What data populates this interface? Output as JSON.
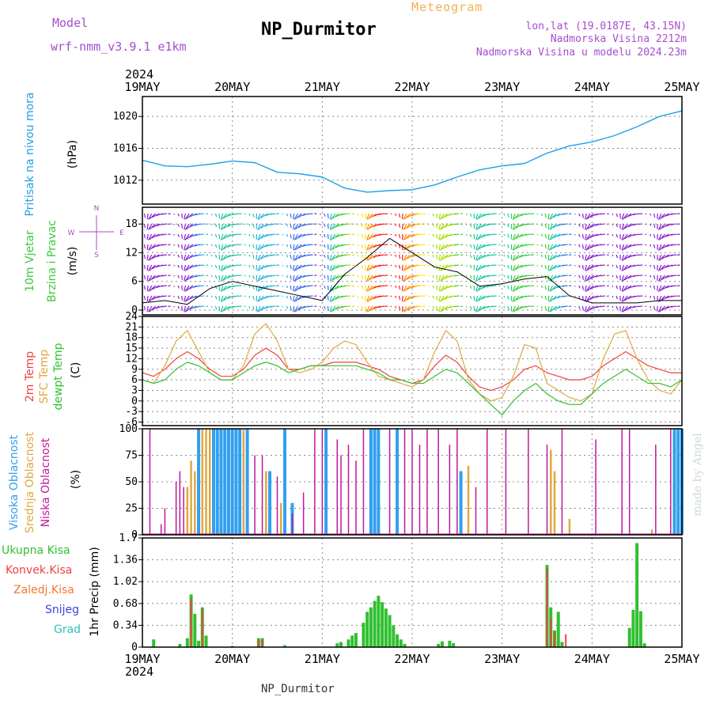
{
  "header": {
    "model_label": "Model",
    "model_name": "wrf-nmm_v3.9.1 e1km",
    "meteogram_label": "Meteogram",
    "station": "NP_Durmitor",
    "lonlat": "lon,lat (19.0187E, 43.15N)",
    "elevation": "Nadmorska Visina 2212m",
    "model_elevation": "Nadmorska Visina u modelu 2024.23m"
  },
  "footer": {
    "station": "NP_Durmitor",
    "credit": "made by Angel"
  },
  "colors": {
    "pressure": "#1fa0e6",
    "wind_label": "#3cc83c",
    "temp2m": "#f04040",
    "sfc": "#e0a840",
    "dewpt": "#30c030",
    "high_cloud": "#30a0f0",
    "mid_cloud": "#e0a840",
    "low_cloud": "#c0189c",
    "rain_total": "#30c030",
    "rain_conv": "#f04040",
    "rain_frozen": "#f07830",
    "snow": "#4040e0",
    "hail": "#30c0c0",
    "wind_axis": "#a64dcf"
  },
  "chart_data": [
    {
      "type": "line",
      "ylabel": [
        "Pritisak na nivou mora",
        "(hPa)"
      ],
      "ylim": [
        1009,
        1022.5
      ],
      "yticks": [
        "1012",
        "1016",
        "1020"
      ],
      "grid": true,
      "x_year_top": "2024",
      "x_year_bottom": "2024",
      "xticks": [
        "19MAY",
        "20MAY",
        "21MAY",
        "22MAY",
        "23MAY",
        "24MAY",
        "25MAY"
      ],
      "series": [
        {
          "x_hours": [
            0,
            6,
            12,
            18,
            24,
            30,
            36,
            42,
            48,
            54,
            60,
            66,
            72,
            78,
            84,
            90,
            96,
            102,
            108,
            114,
            120,
            126,
            132,
            138,
            144
          ],
          "values": [
            1014.5,
            1013.8,
            1013.7,
            1014.0,
            1014.4,
            1014.2,
            1013.0,
            1012.8,
            1012.4,
            1011.0,
            1010.5,
            1010.7,
            1010.8,
            1011.4,
            1012.4,
            1013.3,
            1013.8,
            1014.1,
            1015.4,
            1016.3,
            1016.8,
            1017.6,
            1018.7,
            1020.0,
            1020.7
          ]
        }
      ]
    },
    {
      "type": "line",
      "ylabel": [
        "10m Vjetar",
        "Brzina i Pravac",
        "(m/s)"
      ],
      "ylim": [
        -1,
        21.5
      ],
      "yticks": [
        "0",
        "6",
        "12",
        "18"
      ],
      "compass": [
        "N",
        "W",
        "E",
        "S"
      ],
      "series": [
        {
          "x_hours": [
            0,
            6,
            12,
            18,
            24,
            30,
            36,
            42,
            48,
            54,
            60,
            66,
            72,
            78,
            84,
            90,
            96,
            102,
            108,
            114,
            120,
            126,
            132,
            138,
            144
          ],
          "values": [
            1.5,
            2.0,
            1.2,
            4.5,
            6.0,
            5.0,
            4.0,
            3.0,
            2.0,
            7.5,
            11,
            15,
            12,
            9,
            8,
            5,
            5.5,
            6.5,
            7,
            3,
            1.5,
            1.5,
            1.5,
            2.0,
            2.0
          ]
        }
      ]
    },
    {
      "type": "line",
      "ylabel": [
        "2m Temp",
        "SFC Temp",
        "dewpt Temp",
        "(C)"
      ],
      "ylim": [
        -7,
        24
      ],
      "yticks": [
        "-6",
        "-3",
        "0",
        "3",
        "6",
        "9",
        "12",
        "15",
        "18",
        "21",
        "24"
      ],
      "series": [
        {
          "name": "2m Temp",
          "x_hours": [
            0,
            3,
            6,
            9,
            12,
            15,
            18,
            21,
            24,
            27,
            30,
            33,
            36,
            39,
            42,
            45,
            48,
            51,
            54,
            57,
            60,
            63,
            66,
            69,
            72,
            75,
            78,
            81,
            84,
            87,
            90,
            93,
            96,
            99,
            102,
            105,
            108,
            111,
            114,
            117,
            120,
            123,
            126,
            129,
            132,
            135,
            138,
            141,
            144
          ],
          "values": [
            8,
            7,
            9,
            12,
            14,
            12,
            9,
            7,
            7,
            9,
            13,
            15,
            13,
            9,
            9,
            10,
            10,
            11,
            11,
            11,
            10,
            9,
            7,
            6,
            5,
            6,
            10,
            13,
            11,
            7,
            4,
            3,
            4,
            6,
            9,
            10,
            8,
            7,
            6,
            6,
            7,
            10,
            12,
            14,
            12,
            10,
            9,
            8,
            8
          ]
        },
        {
          "name": "SFC Temp",
          "x_hours": [
            0,
            3,
            6,
            9,
            12,
            15,
            18,
            21,
            24,
            27,
            30,
            33,
            36,
            39,
            42,
            45,
            48,
            51,
            54,
            57,
            60,
            63,
            66,
            69,
            72,
            75,
            78,
            81,
            84,
            87,
            90,
            93,
            96,
            99,
            102,
            105,
            108,
            111,
            114,
            117,
            120,
            123,
            126,
            129,
            132,
            135,
            138,
            141,
            144
          ],
          "values": [
            6,
            5,
            10,
            17,
            20,
            14,
            8,
            6,
            6,
            10,
            19,
            22,
            17,
            9,
            8,
            9,
            11,
            15,
            17,
            16,
            11,
            7,
            6,
            5,
            4,
            6,
            14,
            20,
            17,
            6,
            2,
            0,
            1,
            7,
            16,
            15,
            5,
            3,
            1,
            0,
            2,
            12,
            19,
            20,
            12,
            6,
            3,
            2,
            6
          ]
        },
        {
          "name": "dewpt Temp",
          "x_hours": [
            0,
            3,
            6,
            9,
            12,
            15,
            18,
            21,
            24,
            27,
            30,
            33,
            36,
            39,
            42,
            45,
            48,
            51,
            54,
            57,
            60,
            63,
            66,
            69,
            72,
            75,
            78,
            81,
            84,
            87,
            90,
            93,
            96,
            99,
            102,
            105,
            108,
            111,
            114,
            117,
            120,
            123,
            126,
            129,
            132,
            135,
            138,
            141,
            144
          ],
          "values": [
            6,
            5,
            6,
            9,
            11,
            10,
            8,
            6,
            6,
            8,
            10,
            11,
            10,
            8,
            9,
            10,
            10,
            10,
            10,
            10,
            9,
            8,
            6,
            6,
            5,
            5,
            7,
            9,
            8,
            5,
            2,
            -1,
            -4,
            0,
            3,
            5,
            2,
            0,
            -1,
            -1,
            2,
            5,
            7,
            9,
            7,
            5,
            5,
            4,
            6
          ]
        }
      ]
    },
    {
      "type": "bar",
      "ylabel": [
        "Visoka Oblacnost",
        "Srednja Oblacnost",
        "Niska Oblacnost",
        "(%)"
      ],
      "ylim": [
        0,
        100
      ],
      "yticks": [
        "0",
        "25",
        "50",
        "75",
        "100"
      ],
      "series": [
        {
          "name": "Visoka Oblacnost",
          "bars": [
            [
              15,
              100
            ],
            [
              19,
              100
            ],
            [
              20,
              100
            ],
            [
              21,
              100
            ],
            [
              22,
              100
            ],
            [
              23,
              100
            ],
            [
              24,
              100
            ],
            [
              25,
              100
            ],
            [
              26,
              100
            ],
            [
              28,
              100
            ],
            [
              34,
              60
            ],
            [
              38,
              100
            ],
            [
              40,
              30
            ],
            [
              49,
              100
            ],
            [
              61,
              100
            ],
            [
              62,
              100
            ],
            [
              63,
              100
            ],
            [
              68,
              100
            ],
            [
              85,
              60
            ],
            [
              142,
              100
            ],
            [
              143,
              100
            ],
            [
              144,
              100
            ]
          ]
        },
        {
          "name": "Srednja Oblacnost",
          "bars": [
            [
              12,
              45
            ],
            [
              13,
              70
            ],
            [
              14,
              60
            ],
            [
              16,
              100
            ],
            [
              17,
              100
            ],
            [
              18,
              100
            ],
            [
              27,
              100
            ],
            [
              33,
              60
            ],
            [
              37,
              30
            ],
            [
              87,
              65
            ],
            [
              109,
              80
            ],
            [
              110,
              60
            ],
            [
              114,
              15
            ],
            [
              136,
              5
            ]
          ]
        },
        {
          "name": "Niska Oblacnost",
          "bars": [
            [
              2,
              100
            ],
            [
              5,
              10
            ],
            [
              6,
              25
            ],
            [
              9,
              50
            ],
            [
              10,
              60
            ],
            [
              11,
              45
            ],
            [
              30,
              75
            ],
            [
              32,
              75
            ],
            [
              36,
              55
            ],
            [
              40,
              20
            ],
            [
              43,
              40
            ],
            [
              46,
              100
            ],
            [
              48,
              100
            ],
            [
              52,
              90
            ],
            [
              53,
              75
            ],
            [
              55,
              85
            ],
            [
              57,
              70
            ],
            [
              59,
              100
            ],
            [
              66,
              100
            ],
            [
              70,
              100
            ],
            [
              72,
              100
            ],
            [
              74,
              85
            ],
            [
              76,
              100
            ],
            [
              79,
              100
            ],
            [
              82,
              85
            ],
            [
              84,
              100
            ],
            [
              89,
              45
            ],
            [
              92,
              100
            ],
            [
              97,
              100
            ],
            [
              103,
              100
            ],
            [
              108,
              85
            ],
            [
              112,
              100
            ],
            [
              121,
              90
            ],
            [
              128,
              100
            ],
            [
              130,
              100
            ],
            [
              137,
              85
            ],
            [
              141,
              100
            ]
          ]
        }
      ]
    },
    {
      "type": "bar",
      "ylabel": [
        "Ukupna Kisa",
        "Konvek.Kisa",
        "Zaledj.Kisa",
        "Snijeg",
        "Grad",
        "1hr Precip (mm)"
      ],
      "ylim": [
        0,
        1.7
      ],
      "yticks": [
        "0",
        "0.34",
        "0.68",
        "1.02",
        "1.36",
        "1.7"
      ],
      "series": [
        {
          "name": "Ukupna Kisa",
          "bars": [
            [
              3,
              0.12
            ],
            [
              10,
              0.05
            ],
            [
              12,
              0.14
            ],
            [
              13,
              0.82
            ],
            [
              14,
              0.52
            ],
            [
              15,
              0.1
            ],
            [
              16,
              0.62
            ],
            [
              17,
              0.18
            ],
            [
              24,
              0.02
            ],
            [
              31,
              0.14
            ],
            [
              32,
              0.14
            ],
            [
              38,
              0.03
            ],
            [
              52,
              0.06
            ],
            [
              53,
              0.08
            ],
            [
              55,
              0.12
            ],
            [
              56,
              0.18
            ],
            [
              57,
              0.22
            ],
            [
              59,
              0.38
            ],
            [
              60,
              0.55
            ],
            [
              61,
              0.62
            ],
            [
              62,
              0.72
            ],
            [
              63,
              0.8
            ],
            [
              64,
              0.7
            ],
            [
              65,
              0.6
            ],
            [
              66,
              0.5
            ],
            [
              67,
              0.34
            ],
            [
              68,
              0.2
            ],
            [
              69,
              0.12
            ],
            [
              70,
              0.05
            ],
            [
              79,
              0.05
            ],
            [
              80,
              0.09
            ],
            [
              82,
              0.1
            ],
            [
              83,
              0.06
            ],
            [
              108,
              1.28
            ],
            [
              109,
              0.62
            ],
            [
              110,
              0.26
            ],
            [
              111,
              0.55
            ],
            [
              112,
              0.08
            ],
            [
              130,
              0.3
            ],
            [
              131,
              0.58
            ],
            [
              132,
              1.62
            ],
            [
              133,
              0.56
            ],
            [
              134,
              0.06
            ]
          ]
        },
        {
          "name": "Konvek.Kisa",
          "bars": [
            [
              13,
              0.75
            ],
            [
              16,
              0.58
            ],
            [
              31,
              0.12
            ],
            [
              32,
              0.12
            ],
            [
              108,
              1.22
            ],
            [
              109,
              0.45
            ],
            [
              110,
              0.22
            ],
            [
              113,
              0.2
            ]
          ]
        },
        {
          "name": "Zaledj.Kisa",
          "bars": []
        },
        {
          "name": "Snijeg",
          "bars": []
        },
        {
          "name": "Grad",
          "bars": []
        }
      ]
    }
  ]
}
